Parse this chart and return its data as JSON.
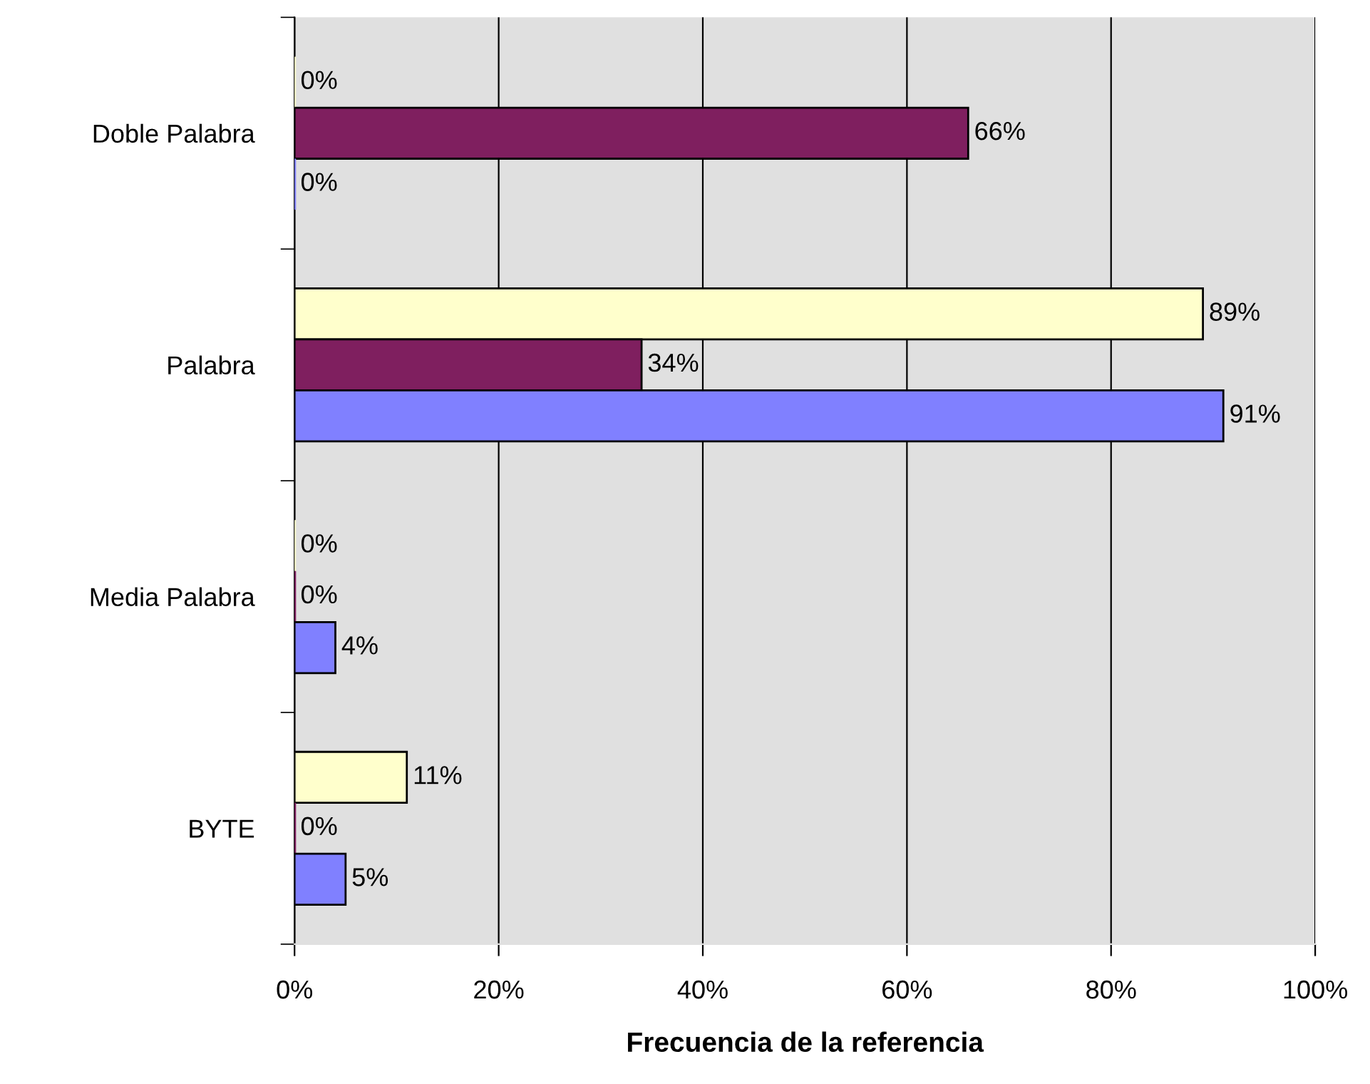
{
  "chart_data": {
    "type": "bar",
    "orientation": "horizontal",
    "xlabel": "Frecuencia de la referencia",
    "categories": [
      "Doble Palabra",
      "Palabra",
      "Media Palabra",
      "BYTE"
    ],
    "series": [
      {
        "color": "#ffffcc",
        "values": [
          0,
          89,
          0,
          11
        ],
        "value_labels": [
          "0%",
          "89%",
          "0%",
          "11%"
        ]
      },
      {
        "color": "#7f1f5f",
        "values": [
          66,
          34,
          0,
          0
        ],
        "value_labels": [
          "66%",
          "34%",
          "0%",
          "0%"
        ]
      },
      {
        "color": "#8080ff",
        "values": [
          0,
          91,
          4,
          5
        ],
        "value_labels": [
          "0%",
          "91%",
          "4%",
          "5%"
        ]
      }
    ],
    "xlim": [
      0,
      100
    ],
    "xticks": [
      {
        "value": 0,
        "label": "0%"
      },
      {
        "value": 20,
        "label": "20%"
      },
      {
        "value": 40,
        "label": "40%"
      },
      {
        "value": 60,
        "label": "60%"
      },
      {
        "value": 80,
        "label": "80%"
      },
      {
        "value": 100,
        "label": "100%"
      }
    ],
    "grid": "x",
    "legend": false
  }
}
